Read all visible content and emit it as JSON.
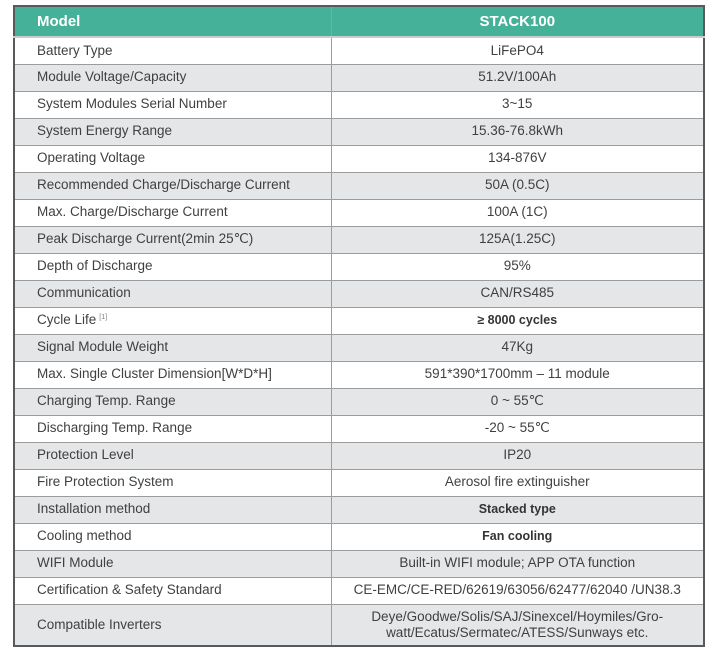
{
  "colors": {
    "header_background": "#46b199",
    "header_text": "#ffffff",
    "row_alt_background": "#e5e6e8",
    "row_background": "#ffffff",
    "body_text": "#3f4040",
    "outer_border": "#58595b",
    "inner_border": "#9a9c9e"
  },
  "table": {
    "header": {
      "model_label": "Model",
      "product_name": "STACK100"
    },
    "rows": [
      {
        "label": "Battery Type",
        "value": "LiFePO4"
      },
      {
        "label": "Module Voltage/Capacity",
        "value": "51.2V/100Ah"
      },
      {
        "label": "System Modules Serial Number",
        "value": "3~15"
      },
      {
        "label": "System Energy Range",
        "value": "15.36-76.8kWh"
      },
      {
        "label": "Operating Voltage",
        "value": "134-876V"
      },
      {
        "label": "Recommended Charge/Discharge Current",
        "value": "50A (0.5C)"
      },
      {
        "label": "Max. Charge/Discharge Current",
        "value": "100A (1C)"
      },
      {
        "label": "Peak Discharge Current(2min 25℃)",
        "value": "125A(1.25C)"
      },
      {
        "label": "Depth of Discharge",
        "value": "95%"
      },
      {
        "label": "Communication",
        "value": "CAN/RS485"
      },
      {
        "label": "Cycle Life",
        "label_sup": "[1]",
        "value": "≥ 8000 cycles",
        "alt_font": true
      },
      {
        "label": "Signal Module Weight",
        "value": "47Kg"
      },
      {
        "label": "Max. Single Cluster Dimension[W*D*H]",
        "value": "591*390*1700mm – 11 module"
      },
      {
        "label": "Charging Temp. Range",
        "value": "0 ~ 55℃"
      },
      {
        "label": "Discharging Temp. Range",
        "value": "-20 ~ 55℃"
      },
      {
        "label": "Protection Level",
        "value": "IP20"
      },
      {
        "label": "Fire Protection System",
        "value": "Aerosol fire extinguisher"
      },
      {
        "label": "Installation method",
        "value": "Stacked type",
        "alt_font": true
      },
      {
        "label": "Cooling method",
        "value": "Fan cooling",
        "alt_font": true
      },
      {
        "label": "WIFI Module",
        "value": "Built-in WIFI module; APP OTA function"
      },
      {
        "label": "Certification & Safety Standard",
        "value": "CE-EMC/CE-RED/62619/63056/62477/62040 /UN38.3"
      },
      {
        "label": "Compatible Inverters",
        "value": "Deye/Goodwe/Solis/SAJ/Sinexcel/Hoymiles/Gro-\nwatt/Ecatus/Sermatec/ATESS/Sunways etc."
      }
    ]
  }
}
